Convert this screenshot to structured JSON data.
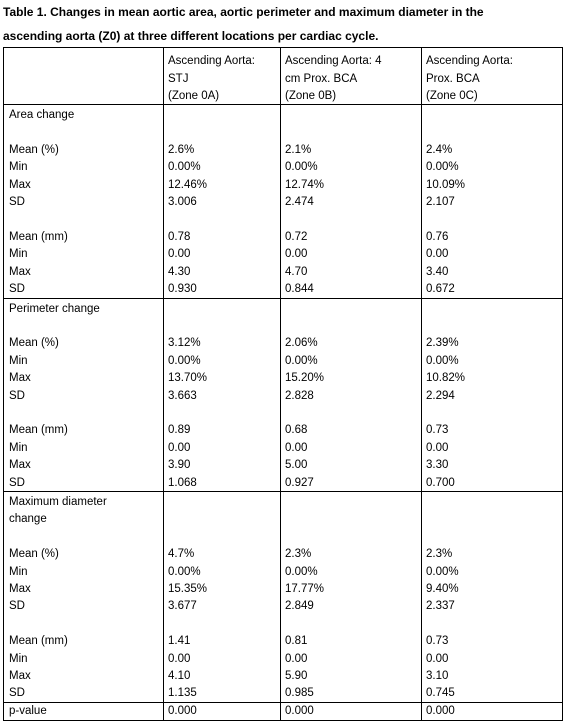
{
  "title": [
    "Table 1. Changes in mean aortic area, aortic perimeter and maximum diameter in the",
    "ascending aorta (Z0) at three different locations per cardiac cycle."
  ],
  "table": {
    "columns": [
      [
        "Ascending Aorta:",
        "STJ",
        "(Zone 0A)"
      ],
      [
        "Ascending Aorta: 4",
        "cm Prox. BCA",
        "(Zone 0B)"
      ],
      [
        "Ascending Aorta:",
        "Prox. BCA",
        "(Zone 0C)"
      ]
    ],
    "sections": [
      {
        "label": [
          "Area change"
        ],
        "groups": [
          [
            {
              "label": "Mean (%)",
              "values": [
                "2.6%",
                "2.1%",
                "2.4%"
              ]
            },
            {
              "label": "Min",
              "values": [
                "0.00%",
                "0.00%",
                "0.00%"
              ]
            },
            {
              "label": "Max",
              "values": [
                "12.46%",
                "12.74%",
                "10.09%"
              ]
            },
            {
              "label": "SD",
              "values": [
                "3.006",
                "2.474",
                "2.107"
              ]
            }
          ],
          [
            {
              "label": "Mean (mm)",
              "values": [
                "0.78",
                "0.72",
                "0.76"
              ]
            },
            {
              "label": "Min",
              "values": [
                "0.00",
                "0.00",
                "0.00"
              ]
            },
            {
              "label": "Max",
              "values": [
                "4.30",
                "4.70",
                "3.40"
              ]
            },
            {
              "label": "SD",
              "values": [
                "0.930",
                "0.844",
                "0.672"
              ]
            }
          ]
        ]
      },
      {
        "label": [
          "Perimeter change"
        ],
        "groups": [
          [
            {
              "label": "Mean (%)",
              "values": [
                "3.12%",
                "2.06%",
                "2.39%"
              ]
            },
            {
              "label": "Min",
              "values": [
                "0.00%",
                "0.00%",
                "0.00%"
              ]
            },
            {
              "label": "Max",
              "values": [
                "13.70%",
                "15.20%",
                "10.82%"
              ]
            },
            {
              "label": "SD",
              "values": [
                "3.663",
                "2.828",
                "2.294"
              ]
            }
          ],
          [
            {
              "label": "Mean (mm)",
              "values": [
                "0.89",
                "0.68",
                "0.73"
              ]
            },
            {
              "label": "Min",
              "values": [
                "0.00",
                "0.00",
                "0.00"
              ]
            },
            {
              "label": "Max",
              "values": [
                "3.90",
                "5.00",
                "3.30"
              ]
            },
            {
              "label": "SD",
              "values": [
                "1.068",
                "0.927",
                "0.700"
              ]
            }
          ]
        ]
      },
      {
        "label": [
          "Maximum diameter",
          "change"
        ],
        "groups": [
          [
            {
              "label": "Mean (%)",
              "values": [
                "4.7%",
                "2.3%",
                "2.3%"
              ]
            },
            {
              "label": "Min",
              "values": [
                "0.00%",
                "0.00%",
                "0.00%"
              ]
            },
            {
              "label": "Max",
              "values": [
                "15.35%",
                "17.77%",
                "9.40%"
              ]
            },
            {
              "label": "SD",
              "values": [
                "3.677",
                "2.849",
                "2.337"
              ]
            }
          ],
          [
            {
              "label": "Mean (mm)",
              "values": [
                "1.41",
                "0.81",
                "0.73"
              ]
            },
            {
              "label": "Min",
              "values": [
                "0.00",
                "0.00",
                "0.00"
              ]
            },
            {
              "label": "Max",
              "values": [
                "4.10",
                "5.90",
                "3.10"
              ]
            },
            {
              "label": "SD",
              "values": [
                "1.135",
                "0.985",
                "0.745"
              ]
            }
          ]
        ]
      }
    ],
    "footer": {
      "label": "p-value",
      "values": [
        "0.000",
        "0.000",
        "0.000"
      ]
    }
  }
}
